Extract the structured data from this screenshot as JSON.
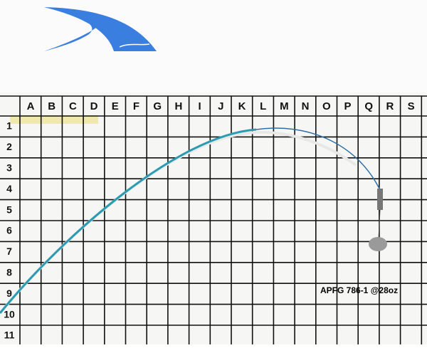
{
  "board": {
    "columns": [
      "A",
      "B",
      "C",
      "D",
      "E",
      "F",
      "G",
      "H",
      "I",
      "J",
      "K",
      "L",
      "M",
      "N",
      "O",
      "P",
      "Q",
      "R",
      "S"
    ],
    "rows": [
      "1",
      "2",
      "3",
      "4",
      "5",
      "6",
      "7",
      "8",
      "9",
      "10",
      "11"
    ],
    "label": "APFG 786-1 @28oz"
  }
}
